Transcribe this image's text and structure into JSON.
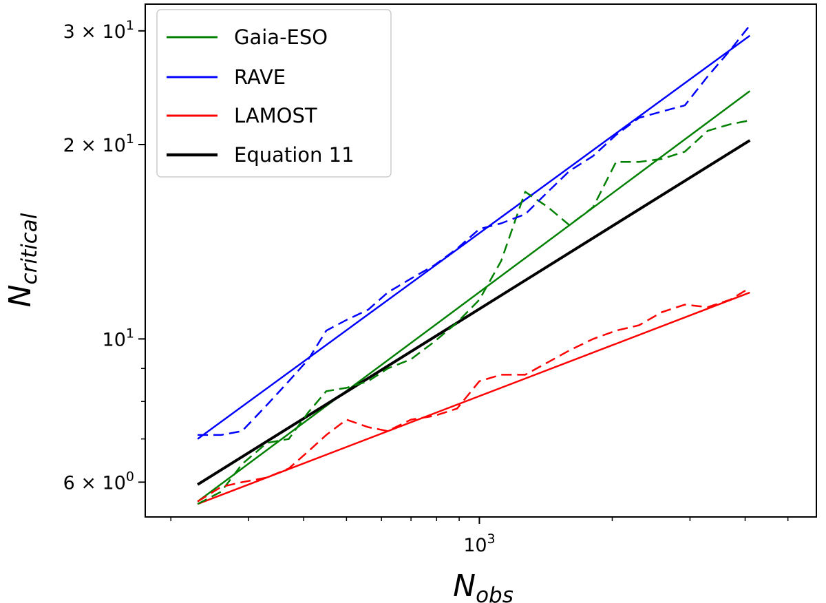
{
  "chart_data": {
    "type": "line",
    "xscale": "log",
    "yscale": "log",
    "xlim": [
      175,
      5800
    ],
    "ylim": [
      5.3,
      33
    ],
    "xlabel_base": "N",
    "xlabel_sub": "obs",
    "ylabel_base": "N",
    "ylabel_sub": "critical",
    "xticks": [
      {
        "value": 1000,
        "base": "10",
        "exp": "3"
      }
    ],
    "yticks": [
      {
        "value": 6,
        "mant": "6",
        "base": "10",
        "exp": "0"
      },
      {
        "value": 10,
        "mant": "",
        "base": "10",
        "exp": "1"
      },
      {
        "value": 20,
        "mant": "2",
        "base": "10",
        "exp": "1"
      },
      {
        "value": 30,
        "mant": "3",
        "base": "10",
        "exp": "1"
      }
    ],
    "x_minor_ticks": [
      200,
      300,
      400,
      500,
      600,
      700,
      800,
      900,
      2000,
      3000,
      4000,
      5000
    ],
    "y_minor_ticks": [
      7,
      8,
      9
    ],
    "legend": {
      "placement": "top-left",
      "entries": [
        {
          "label": "Gaia-ESO",
          "color": "#008000"
        },
        {
          "label": "RAVE",
          "color": "#0000ff"
        },
        {
          "label": "LAMOST",
          "color": "#ff0000"
        },
        {
          "label": "Equation 11",
          "color": "#000000"
        }
      ]
    },
    "series": [
      {
        "name": "Gaia-ESO fit",
        "color": "#008000",
        "style": "solid",
        "width": 2.5,
        "x": [
          230,
          4100
        ],
        "y": [
          5.6,
          24.2
        ]
      },
      {
        "name": "RAVE fit",
        "color": "#0000ff",
        "style": "solid",
        "width": 2.5,
        "x": [
          230,
          4100
        ],
        "y": [
          7.0,
          29.5
        ]
      },
      {
        "name": "LAMOST fit",
        "color": "#ff0000",
        "style": "solid",
        "width": 2.5,
        "x": [
          230,
          4100
        ],
        "y": [
          5.55,
          11.8
        ]
      },
      {
        "name": "Equation 11",
        "color": "#000000",
        "style": "solid",
        "width": 4,
        "x": [
          230,
          4100
        ],
        "y": [
          5.95,
          20.3
        ]
      },
      {
        "name": "Gaia-ESO data",
        "color": "#008000",
        "style": "dashed",
        "width": 2.5,
        "x": [
          230,
          260,
          290,
          330,
          370,
          410,
          450,
          500,
          560,
          620,
          700,
          790,
          890,
          1000,
          1120,
          1270,
          1430,
          1600,
          1810,
          2040,
          2300,
          2590,
          2920,
          3290,
          3700,
          4100
        ],
        "y": [
          5.55,
          5.8,
          6.4,
          6.9,
          7.0,
          7.7,
          8.3,
          8.4,
          8.6,
          9.0,
          9.3,
          9.9,
          10.6,
          11.5,
          13.2,
          16.9,
          16.0,
          15.0,
          16.0,
          18.8,
          18.8,
          19.0,
          19.5,
          21.0,
          21.5,
          21.8
        ]
      },
      {
        "name": "RAVE data",
        "color": "#0000ff",
        "style": "dashed",
        "width": 2.5,
        "x": [
          230,
          260,
          290,
          330,
          370,
          410,
          450,
          500,
          560,
          620,
          700,
          790,
          890,
          1000,
          1120,
          1270,
          1430,
          1600,
          1810,
          2040,
          2300,
          2590,
          2920,
          3290,
          3700,
          4100
        ],
        "y": [
          7.1,
          7.1,
          7.2,
          7.9,
          8.6,
          9.3,
          10.3,
          10.7,
          11.1,
          11.8,
          12.4,
          13.0,
          13.8,
          14.8,
          15.1,
          15.6,
          16.9,
          18.2,
          19.2,
          20.7,
          22.0,
          22.5,
          23.0,
          25.5,
          28.0,
          30.6
        ]
      },
      {
        "name": "LAMOST data",
        "color": "#ff0000",
        "style": "dashed",
        "width": 2.5,
        "x": [
          230,
          260,
          290,
          330,
          370,
          410,
          450,
          500,
          560,
          620,
          700,
          790,
          890,
          1000,
          1120,
          1270,
          1430,
          1600,
          1810,
          2040,
          2300,
          2590,
          2920,
          3290,
          3700,
          4100
        ],
        "y": [
          5.6,
          5.9,
          6.0,
          6.1,
          6.3,
          6.7,
          7.1,
          7.5,
          7.3,
          7.2,
          7.5,
          7.6,
          7.8,
          8.6,
          8.8,
          8.8,
          9.2,
          9.6,
          10.0,
          10.3,
          10.5,
          11.0,
          11.3,
          11.2,
          11.5,
          12.0
        ]
      }
    ]
  }
}
